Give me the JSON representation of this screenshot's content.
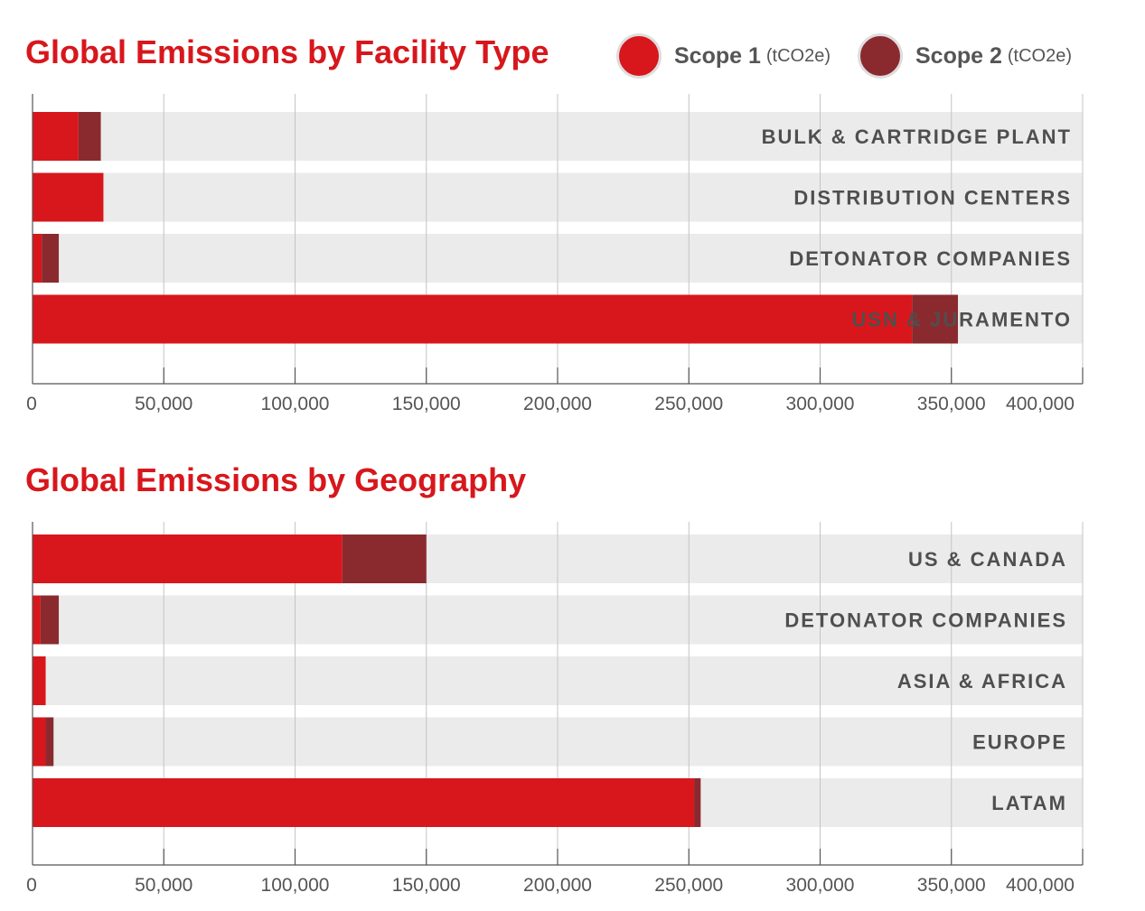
{
  "legend": {
    "unit": "(tCO2e)",
    "items": [
      {
        "name": "Scope 1",
        "color": "#d7171c"
      },
      {
        "name": "Scope 2",
        "color": "#8b2a2e"
      }
    ]
  },
  "colors": {
    "track": "#ebebeb",
    "grid": "#c4c4c4",
    "axis": "#555555",
    "category_text": "#4f4f4f",
    "tick_text": "#555555",
    "title": "#d7171c"
  },
  "chart_data": [
    {
      "type": "bar",
      "orientation": "horizontal",
      "stacked": true,
      "title": "Global Emissions by Facility Type",
      "categories": [
        "BULK & CARTRIDGE PLANT",
        "DISTRIBUTION CENTERS",
        "DETONATOR COMPANIES",
        "USN & JURAMENTO"
      ],
      "series": [
        {
          "name": "Scope 1",
          "values": [
            17500,
            27000,
            3500,
            335000
          ]
        },
        {
          "name": "Scope 2",
          "values": [
            8500,
            0,
            6500,
            17500
          ]
        }
      ],
      "xlim": [
        0,
        400000
      ],
      "xticks": [
        "0",
        "50,000",
        "100,000",
        "150,000",
        "200,000",
        "250,000",
        "300,000",
        "350,000",
        "400,000"
      ],
      "grid": true
    },
    {
      "type": "bar",
      "orientation": "horizontal",
      "stacked": true,
      "title": "Global Emissions by Geography",
      "categories": [
        "US & CANADA",
        "DETONATOR COMPANIES",
        "ASIA & AFRICA",
        "EUROPE",
        "LATAM"
      ],
      "series": [
        {
          "name": "Scope 1",
          "values": [
            118000,
            3000,
            5000,
            5000,
            252000
          ]
        },
        {
          "name": "Scope 2",
          "values": [
            32000,
            7000,
            0,
            3000,
            2500
          ]
        }
      ],
      "xlim": [
        0,
        400000
      ],
      "xticks": [
        "0",
        "50,000",
        "100,000",
        "150,000",
        "200,000",
        "250,000",
        "300,000",
        "350,000",
        "400,000"
      ],
      "grid": true
    }
  ]
}
